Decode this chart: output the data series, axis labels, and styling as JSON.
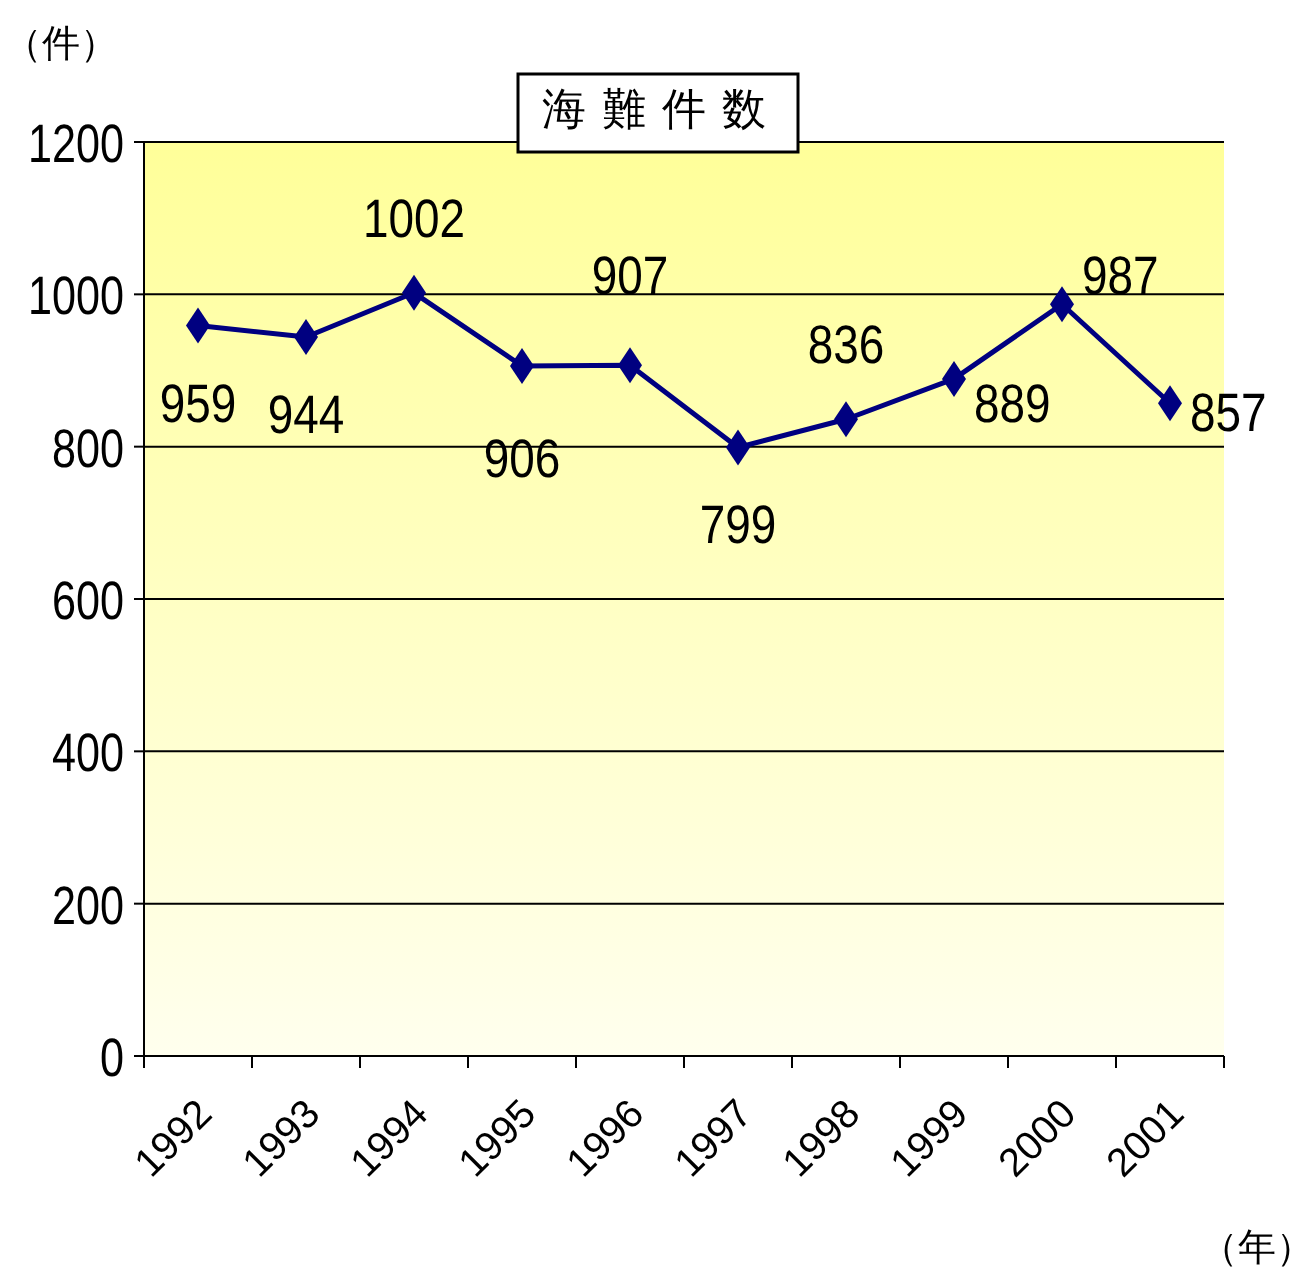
{
  "chart_data": {
    "type": "line",
    "title": "海難件数",
    "ylabel": "（件）",
    "xlabel": "（年）",
    "categories": [
      "1992",
      "1993",
      "1994",
      "1995",
      "1996",
      "1997",
      "1998",
      "1999",
      "2000",
      "2001"
    ],
    "series": [
      {
        "color": "#000080",
        "values": [
          959,
          944,
          1002,
          906,
          907,
          799,
          836,
          889,
          987,
          857
        ]
      }
    ],
    "ylim": [
      0,
      1200
    ],
    "yticks": [
      0,
      200,
      400,
      600,
      800,
      1000,
      1200
    ],
    "grid": "y",
    "marker": "diamond",
    "line_style": "solid",
    "data_labels": true
  }
}
